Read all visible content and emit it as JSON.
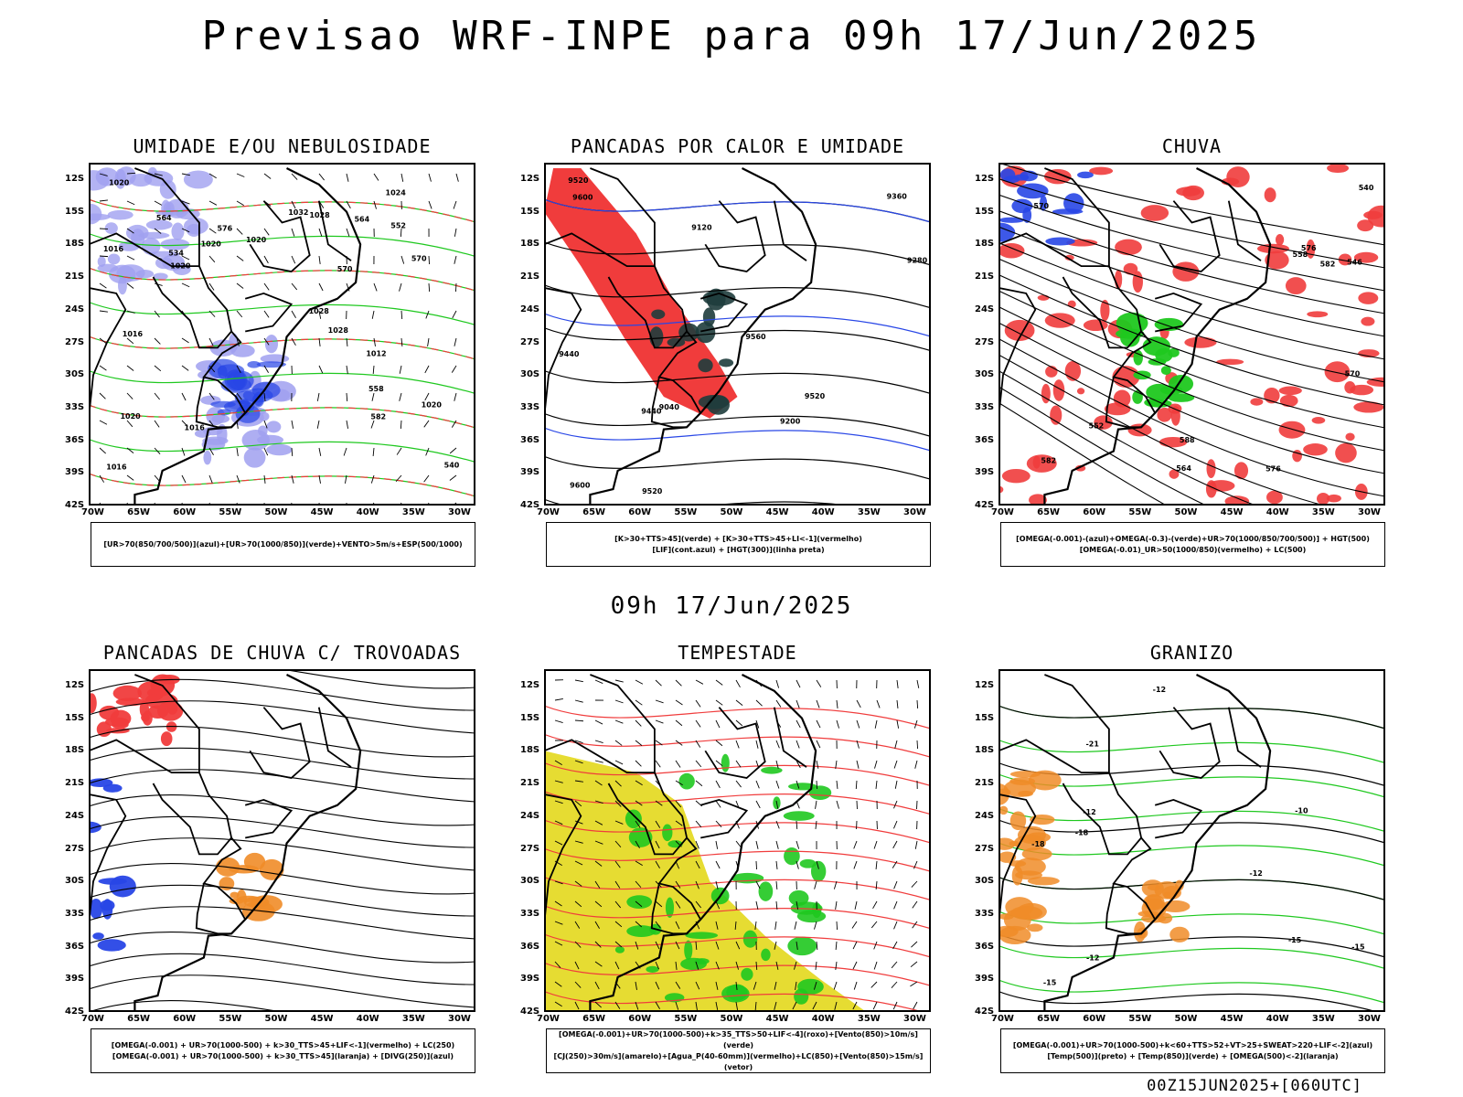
{
  "header": {
    "title": "Previsao WRF-INPE  para 09h 17/Jun/2025",
    "mid_time": "09h 17/Jun/2025",
    "run_id": "00Z15JUN2025+[060UTC]"
  },
  "axes": {
    "lat_labels": [
      "12S",
      "15S",
      "18S",
      "21S",
      "24S",
      "27S",
      "30S",
      "33S",
      "36S",
      "39S",
      "42S"
    ],
    "lon_labels": [
      "70W",
      "65W",
      "60W",
      "55W",
      "50W",
      "45W",
      "40W",
      "35W",
      "30W"
    ]
  },
  "colors": {
    "red": "#f03c3c",
    "green": "#1fc81f",
    "blue": "#2846e6",
    "lightblue": "#a0a0f0",
    "yellow": "#e6dc32",
    "orange": "#f08c28",
    "darkteal": "#1e3c3c",
    "black": "#000000"
  },
  "panels": [
    {
      "title": "UMIDADE E/OU NEBULOSIDADE",
      "legend": [
        "[UR>70(850/700/500)](azul)+[UR>70(1000/850)](verde)+VENTO>5m/s+ESP(500/1000)"
      ],
      "contour_labels": [
        "1016",
        "1016",
        "1016",
        "1020",
        "1020",
        "1020",
        "1024",
        "1028",
        "1028",
        "1032",
        "1012",
        "1016",
        "1020",
        "1020",
        "1028",
        "1020",
        "564",
        "552",
        "540",
        "534",
        "570",
        "576",
        "558",
        "564",
        "570",
        "582"
      ]
    },
    {
      "title": "PANCADAS POR CALOR E UMIDADE",
      "legend": [
        "[K>30+TTS>45](verde) + [K>30+TTS>45+LI<-1](vermelho)",
        "[LIF](cont.azul) + [HGT(300)](linha preta)"
      ],
      "contour_labels": [
        "9600",
        "9520",
        "9440",
        "9360",
        "9280",
        "9200",
        "9120",
        "9040",
        "9600",
        "9520",
        "9440",
        "9560",
        "9520"
      ]
    },
    {
      "title": "CHUVA",
      "legend": [
        "[OMEGA(-0.001)-(azul)+OMEGA(-0.3)-(verde)+UR>70(1000/850/700/500)] + HGT(500)",
        "[OMEGA(-0.01)_UR>50(1000/850)(vermelho) + LC(500)"
      ],
      "contour_labels": [
        "582",
        "576",
        "570",
        "564",
        "558",
        "552",
        "546",
        "540",
        "588",
        "582",
        "576",
        "570"
      ]
    },
    {
      "title": "PANCADAS DE CHUVA C/ TROVOADAS",
      "legend": [
        "[OMEGA(-0.001) + UR>70(1000-500) + k>30_TTS>45+LIF<-1](vermelho) + LC(250)",
        "[OMEGA(-0.001) + UR>70(1000-500) + k>30_TTS>45](laranja) + [DIVG(250)](azul)"
      ],
      "contour_labels": []
    },
    {
      "title": "TEMPESTADE",
      "legend": [
        "[OMEGA(-0.001)+UR>70(1000-500)+k>35_TTS>50+LIF<-4](roxo)+[Vento(850)>10m/s](verde)",
        "[CJ(250)>30m/s](amarelo)+[Agua_P(40-60mm)](vermelho)+LC(850)+[Vento(850)>15m/s](vetor)"
      ],
      "contour_labels": []
    },
    {
      "title": "GRANIZO",
      "legend": [
        "[OMEGA(-0.001)+UR>70(1000-500)+k<60+TTS>52+VT>25+SWEAT>220+LIF<-2](azul)",
        "[Temp(500)](preto) + [Temp(850)](verde) + [OMEGA(500)<-2](laranja)"
      ],
      "contour_labels": [
        "-12",
        "-12",
        "-15",
        "-18",
        "-21",
        "-15",
        "-12",
        "-15",
        "-10",
        "-12",
        "-18"
      ]
    }
  ]
}
